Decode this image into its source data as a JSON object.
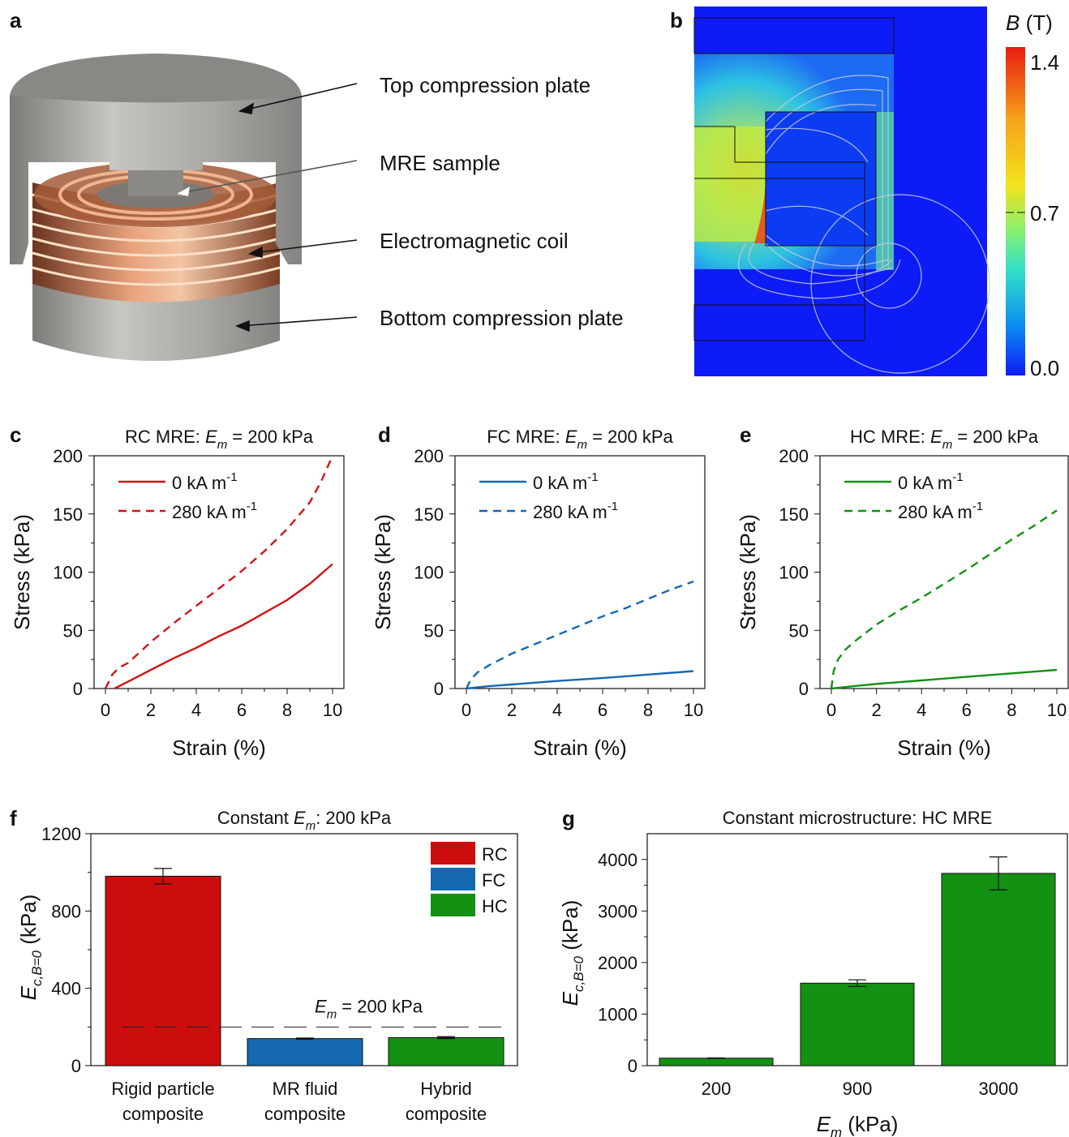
{
  "panel_letters": {
    "a": "a",
    "b": "b",
    "c": "c",
    "d": "d",
    "e": "e",
    "f": "f",
    "g": "g"
  },
  "panel_a": {
    "labels": [
      "Top compression plate",
      "MRE sample",
      "Electromagnetic coil",
      "Bottom compression plate"
    ]
  },
  "panel_b": {
    "colorbar_label_symbol": "B",
    "colorbar_label_unit": "(T)",
    "colorbar_ticks": [
      "1.4",
      "0.7",
      "0.0"
    ],
    "colorbar_colors": [
      "#e81c10",
      "#f4e21c",
      "#31e0c9",
      "#0c55f0",
      "#0d1cf6"
    ]
  },
  "chart_data": [
    {
      "id": "c",
      "type": "line",
      "title_prefix": "RC MRE: ",
      "title_sym": "E",
      "title_sub": "m",
      "title_suffix": " = 200 kPa",
      "xlabel": "Strain (%)",
      "ylabel": "Stress (kPa)",
      "xlim": [
        0,
        10
      ],
      "ylim": [
        0,
        200
      ],
      "xticks": [
        0,
        2,
        4,
        6,
        8,
        10
      ],
      "yticks": [
        0,
        50,
        100,
        150,
        200
      ],
      "legend_placement": "top-left",
      "series": [
        {
          "name": "0 kA m",
          "name_sup": "-1",
          "color": "#d11414",
          "dash": false,
          "x": [
            0.4,
            1,
            2,
            3,
            4,
            5,
            6,
            7,
            8,
            9,
            10
          ],
          "y": [
            0,
            6,
            16,
            26,
            35,
            45,
            54,
            65,
            76,
            90,
            107
          ]
        },
        {
          "name": "280 kA m",
          "name_sup": "-1",
          "color": "#d11414",
          "dash": true,
          "x": [
            0,
            0.3,
            0.6,
            1,
            2,
            3,
            4,
            5,
            6,
            7,
            8,
            9,
            9.5,
            10
          ],
          "y": [
            0,
            12,
            18,
            22,
            40,
            56,
            71,
            86,
            101,
            118,
            137,
            160,
            178,
            200
          ]
        }
      ]
    },
    {
      "id": "d",
      "type": "line",
      "title_prefix": "FC MRE: ",
      "title_sym": "E",
      "title_sub": "m",
      "title_suffix": " = 200 kPa",
      "xlabel": "Strain (%)",
      "ylabel": "Stress (kPa)",
      "xlim": [
        0,
        10
      ],
      "ylim": [
        0,
        200
      ],
      "xticks": [
        0,
        2,
        4,
        6,
        8,
        10
      ],
      "yticks": [
        0,
        50,
        100,
        150,
        200
      ],
      "legend_placement": "top-left",
      "series": [
        {
          "name": "0 kA m",
          "name_sup": "-1",
          "color": "#1568b0",
          "dash": false,
          "x": [
            0,
            1,
            2,
            4,
            6,
            8,
            10
          ],
          "y": [
            0,
            2,
            3.5,
            6.5,
            9,
            12,
            15
          ]
        },
        {
          "name": "280 kA m",
          "name_sup": "-1",
          "color": "#1568b0",
          "dash": true,
          "x": [
            0,
            0.2,
            0.5,
            1,
            2,
            3,
            4,
            5,
            6,
            7,
            8,
            9,
            10
          ],
          "y": [
            0,
            8,
            14,
            20,
            30,
            38,
            46,
            54,
            62,
            69,
            77,
            85,
            92
          ]
        }
      ]
    },
    {
      "id": "e",
      "type": "line",
      "title_prefix": "HC MRE: ",
      "title_sym": "E",
      "title_sub": "m",
      "title_suffix": " = 200 kPa",
      "xlabel": "Strain (%)",
      "ylabel": "Stress (kPa)",
      "xlim": [
        0,
        10
      ],
      "ylim": [
        0,
        200
      ],
      "xticks": [
        0,
        2,
        4,
        6,
        8,
        10
      ],
      "yticks": [
        0,
        50,
        100,
        150,
        200
      ],
      "legend_placement": "top-left",
      "series": [
        {
          "name": "0 kA m",
          "name_sup": "-1",
          "color": "#139113",
          "dash": false,
          "x": [
            0,
            1,
            2,
            4,
            6,
            8,
            10
          ],
          "y": [
            0,
            2,
            4,
            7,
            10,
            13,
            16
          ]
        },
        {
          "name": "280 kA m",
          "name_sup": "-1",
          "color": "#139113",
          "dash": true,
          "x": [
            0,
            0.1,
            0.3,
            0.6,
            1,
            2,
            3,
            4,
            5,
            6,
            7,
            8,
            9,
            10
          ],
          "y": [
            0,
            15,
            25,
            33,
            40,
            55,
            67,
            78,
            90,
            102,
            115,
            128,
            140,
            153
          ]
        }
      ]
    },
    {
      "id": "f",
      "type": "bar",
      "title_prefix": "Constant ",
      "title_sym": "E",
      "title_sub": "m",
      "title_suffix": ": 200 kPa",
      "ylabel_sym": "E",
      "ylabel_sub": "c,B=0",
      "ylabel_unit": " (kPa)",
      "categories": [
        [
          "Rigid particle",
          "composite"
        ],
        [
          "MR fluid",
          "composite"
        ],
        [
          "Hybrid",
          "composite"
        ]
      ],
      "values": [
        980,
        140,
        145
      ],
      "errors": [
        40,
        3,
        5
      ],
      "colors": [
        "#cc0d0d",
        "#1569b0",
        "#139113"
      ],
      "ylim": [
        0,
        1200
      ],
      "yticks": [
        0,
        400,
        800,
        1200
      ],
      "reference_line": {
        "value": 200,
        "label_sym": "E",
        "label_sub": "m",
        "label_suffix": " = 200 kPa"
      },
      "legend": [
        {
          "name": "RC",
          "color": "#cc0d0d"
        },
        {
          "name": "FC",
          "color": "#1569b0"
        },
        {
          "name": "HC",
          "color": "#139113"
        }
      ],
      "legend_placement": "top-right"
    },
    {
      "id": "g",
      "type": "bar",
      "title": "Constant microstructure: HC MRE",
      "xlabel_sym": "E",
      "xlabel_sub": "m",
      "xlabel_unit": " (kPa)",
      "ylabel_sym": "E",
      "ylabel_sub": "c,B=0",
      "ylabel_unit": " (kPa)",
      "categories": [
        "200",
        "900",
        "3000"
      ],
      "values": [
        145,
        1600,
        3730
      ],
      "errors": [
        5,
        65,
        320
      ],
      "colors": [
        "#139113",
        "#139113",
        "#139113"
      ],
      "ylim": [
        0,
        4500
      ],
      "yticks": [
        0,
        1000,
        2000,
        3000,
        4000
      ]
    }
  ]
}
